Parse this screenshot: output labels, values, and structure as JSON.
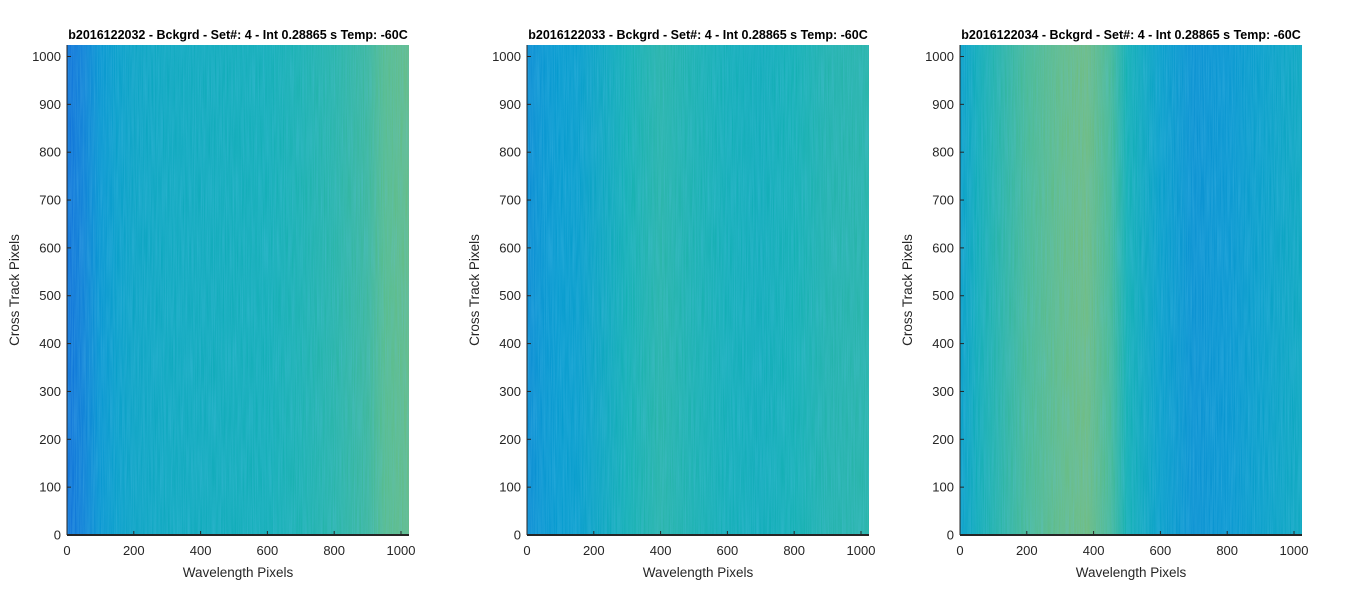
{
  "chart_data": [
    {
      "type": "heatmap",
      "title": "b2016122032 - Bckgrd - Set#: 4 - Int 0.28865 s Temp: -60C",
      "xlabel": "Wavelength Pixels",
      "ylabel": "Cross Track Pixels",
      "xlim": [
        0,
        1024
      ],
      "ylim": [
        0,
        1024
      ],
      "xticks": [
        0,
        200,
        400,
        600,
        800,
        1000
      ],
      "yticks": [
        0,
        100,
        200,
        300,
        400,
        500,
        600,
        700,
        800,
        900,
        1000
      ],
      "colormap": "parula",
      "column_profile": {
        "x": [
          0,
          50,
          100,
          150,
          200,
          300,
          400,
          500,
          600,
          700,
          800,
          900,
          950,
          1024
        ],
        "level": [
          0.25,
          0.32,
          0.4,
          0.44,
          0.46,
          0.48,
          0.49,
          0.5,
          0.51,
          0.53,
          0.55,
          0.58,
          0.62,
          0.64
        ]
      }
    },
    {
      "type": "heatmap",
      "title": "b2016122033 - Bckgrd - Set#: 4 - Int 0.28865 s Temp: -60C",
      "xlabel": "Wavelength Pixels",
      "ylabel": "Cross Track Pixels",
      "xlim": [
        0,
        1024
      ],
      "ylim": [
        0,
        1024
      ],
      "xticks": [
        0,
        200,
        400,
        600,
        800,
        1000
      ],
      "yticks": [
        0,
        100,
        200,
        300,
        400,
        500,
        600,
        700,
        800,
        900,
        1000
      ],
      "colormap": "parula",
      "column_profile": {
        "x": [
          0,
          50,
          100,
          150,
          200,
          300,
          400,
          500,
          600,
          700,
          800,
          900,
          1024
        ],
        "level": [
          0.36,
          0.4,
          0.42,
          0.43,
          0.46,
          0.52,
          0.55,
          0.53,
          0.51,
          0.5,
          0.52,
          0.54,
          0.55
        ]
      }
    },
    {
      "type": "heatmap",
      "title": "b2016122034 - Bckgrd - Set#: 4 - Int 0.28865 s Temp: -60C",
      "xlabel": "Wavelength Pixels",
      "ylabel": "Cross Track Pixels",
      "xlim": [
        0,
        1024
      ],
      "ylim": [
        0,
        1024
      ],
      "xticks": [
        0,
        200,
        400,
        600,
        800,
        1000
      ],
      "yticks": [
        0,
        100,
        200,
        300,
        400,
        500,
        600,
        700,
        800,
        900,
        1000
      ],
      "colormap": "parula",
      "column_profile": {
        "x": [
          0,
          50,
          100,
          200,
          300,
          380,
          450,
          500,
          600,
          700,
          800,
          900,
          1024
        ],
        "level": [
          0.44,
          0.5,
          0.54,
          0.6,
          0.64,
          0.66,
          0.6,
          0.52,
          0.44,
          0.38,
          0.4,
          0.44,
          0.48
        ]
      }
    }
  ]
}
